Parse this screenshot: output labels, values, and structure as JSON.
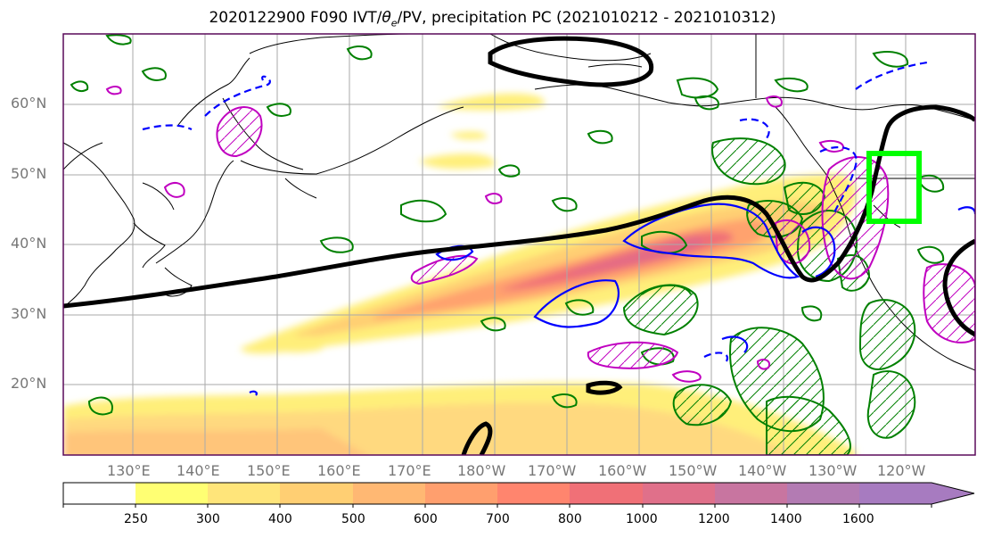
{
  "title_prefix": "2020122900 F090 IVT/",
  "title_theta": "θ",
  "title_theta_sub": "e",
  "title_suffix": "/PV, precipitation PC (2021010212 - 2021010312)",
  "latitudes": [
    "60°N",
    "50°N",
    "40°N",
    "30°N",
    "20°N"
  ],
  "longitudes": [
    "130°E",
    "140°E",
    "150°E",
    "160°E",
    "170°E",
    "180°W",
    "170°W",
    "160°W",
    "150°W",
    "140°W",
    "130°W",
    "120°W"
  ],
  "colorbar": {
    "ticks": [
      "250",
      "300",
      "400",
      "500",
      "600",
      "700",
      "800",
      "1000",
      "1200",
      "1400",
      "1600"
    ],
    "colors": [
      "#ffffff",
      "#ffff73",
      "#ffe57a",
      "#ffcf73",
      "#ffb873",
      "#ff9f6e",
      "#ff856e",
      "#f07077",
      "#e0708a",
      "#c875a0",
      "#a77bc0"
    ]
  },
  "contour_colors": {
    "theta_e": "#000000",
    "pv_positive": "#0000ff",
    "pv_negative": "#0000ff",
    "precip_pc_positive": "#008000",
    "precip_pc_negative": "#c000c0",
    "target_box": "#00ff00"
  }
}
